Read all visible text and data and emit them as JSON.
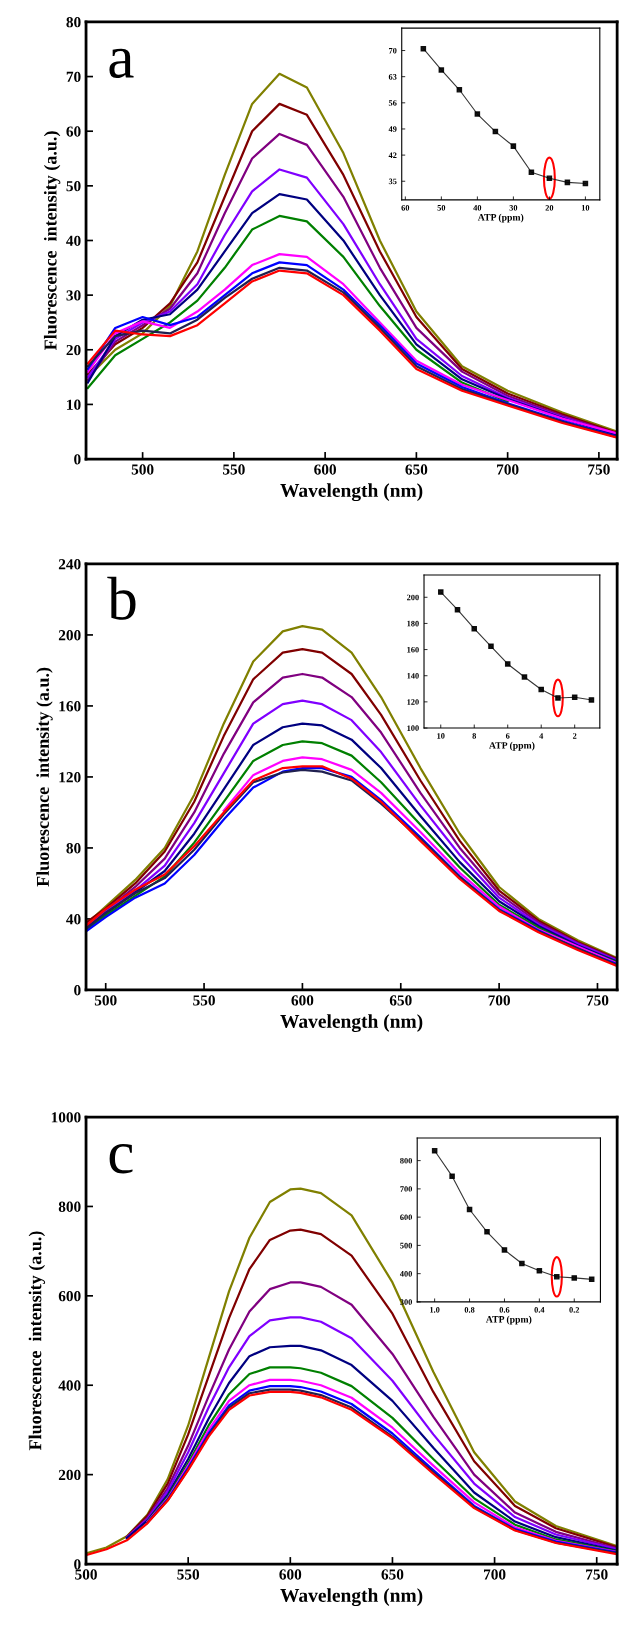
{
  "chart_data": [
    {
      "type": "line",
      "title": "a",
      "xlabel": "Wavelength (nm)",
      "ylabel": "Fluorescence  intensity (a.u.)",
      "xlim": [
        469,
        760
      ],
      "xticks": [
        500,
        550,
        600,
        650,
        700,
        750
      ],
      "ylim": [
        0,
        80
      ],
      "yticks": [
        0,
        10,
        20,
        30,
        40,
        50,
        60,
        70,
        80
      ],
      "marker": "none",
      "line_style": "solid",
      "grid": false,
      "legend": false,
      "x": [
        470,
        485,
        500,
        515,
        530,
        545,
        560,
        575,
        590,
        610,
        630,
        650,
        675,
        700,
        730,
        760
      ],
      "series": [
        {
          "color": "#808000",
          "values": [
            15,
            20,
            23,
            28,
            38,
            52,
            65,
            70.5,
            68,
            56,
            40,
            27,
            17,
            12.5,
            8.5,
            5
          ]
        },
        {
          "color": "#800000",
          "values": [
            15.5,
            21,
            24,
            28.5,
            36,
            48,
            60,
            65,
            63,
            52,
            38,
            26,
            16.5,
            12,
            8.2,
            4.8
          ]
        },
        {
          "color": "#800080",
          "values": [
            14.5,
            21.5,
            24.5,
            27.5,
            34,
            45,
            55,
            59.5,
            57.5,
            48,
            35,
            24,
            16,
            11.6,
            7.9,
            4.6
          ]
        },
        {
          "color": "#8000ff",
          "values": [
            15,
            22,
            25,
            27,
            32,
            41,
            49,
            53,
            51.5,
            43,
            32,
            22,
            15.2,
            11.2,
            7.7,
            4.4
          ]
        },
        {
          "color": "#000080",
          "values": [
            14,
            22.5,
            25.5,
            26.5,
            31,
            38,
            45,
            48.5,
            47.5,
            40,
            30,
            21,
            14.6,
            11,
            7.5,
            4.3
          ]
        },
        {
          "color": "#008000",
          "values": [
            13,
            19,
            22,
            25,
            29,
            35,
            42,
            44.5,
            43.5,
            37,
            28,
            20,
            14,
            10.5,
            null,
            null
          ]
        },
        {
          "color": "#ff00ff",
          "values": [
            16,
            23,
            25.2,
            24,
            27,
            31,
            35.5,
            37.5,
            37,
            32,
            25,
            18,
            13.6,
            10.8,
            7.4,
            4.7
          ]
        },
        {
          "color": "#0000ff",
          "values": [
            16.5,
            24,
            26,
            24.5,
            26,
            30,
            34,
            36,
            35.5,
            31,
            24.5,
            17.5,
            13.2,
            10.2,
            7,
            4.1
          ]
        },
        {
          "color": "#202050",
          "values": [
            17,
            22.5,
            23.5,
            23,
            25.5,
            29.5,
            33,
            35,
            34.5,
            30.5,
            24,
            17,
            12.8,
            10,
            6.8,
            4
          ]
        },
        {
          "color": "#ff0000",
          "values": [
            17.5,
            23.5,
            22.8,
            22.5,
            24.5,
            28.5,
            32.5,
            34.5,
            34,
            30,
            23.5,
            16.5,
            12.5,
            9.8,
            6.6,
            3.9
          ]
        }
      ]
    },
    {
      "type": "line",
      "xlabel": "ATP (ppm)",
      "xlim": [
        61,
        6
      ],
      "xticks": [
        60,
        50,
        40,
        30,
        20,
        10
      ],
      "ylim": [
        30,
        76
      ],
      "yticks": [
        35,
        42,
        49,
        56,
        63,
        70
      ],
      "marker": "square",
      "line_style": "solid",
      "grid": false,
      "legend": false,
      "x": [
        55,
        50,
        45,
        40,
        35,
        30,
        25,
        20,
        15,
        10
      ],
      "series": [
        {
          "color": "#202020",
          "values": [
            70.5,
            64.8,
            59.5,
            53,
            48.3,
            44.4,
            37.4,
            35.8,
            34.7,
            34.4
          ]
        }
      ]
    },
    {
      "type": "line",
      "title": "b",
      "xlabel": "Wavelength (nm)",
      "ylabel": "Fluorescence  intensity (a.u.)",
      "xlim": [
        490,
        760
      ],
      "xticks": [
        500,
        550,
        600,
        650,
        700,
        750
      ],
      "ylim": [
        0,
        240
      ],
      "yticks": [
        0,
        40,
        80,
        120,
        160,
        200,
        240
      ],
      "marker": "none",
      "line_style": "solid",
      "grid": false,
      "legend": false,
      "x": [
        490,
        500,
        515,
        530,
        545,
        560,
        575,
        590,
        600,
        610,
        625,
        640,
        660,
        680,
        700,
        720,
        740,
        760
      ],
      "series": [
        {
          "color": "#808000",
          "values": [
            37,
            47,
            62,
            80,
            110,
            150,
            185,
            202,
            205,
            203,
            190,
            165,
            125,
            88,
            58,
            40,
            28,
            18
          ]
        },
        {
          "color": "#800000",
          "values": [
            38,
            46,
            60,
            78,
            106,
            143,
            175,
            190,
            192,
            190,
            178,
            155,
            118,
            84,
            56,
            39,
            27,
            17.5
          ]
        },
        {
          "color": "#800080",
          "values": [
            36,
            45,
            58,
            74,
            100,
            133,
            162,
            176,
            178,
            176,
            165,
            145,
            111,
            80,
            54,
            38,
            26.5,
            17
          ]
        },
        {
          "color": "#8000ff",
          "values": [
            36.5,
            44,
            56,
            70,
            94,
            122,
            150,
            161,
            163,
            161,
            152,
            134,
            104,
            76,
            52,
            37,
            26,
            16.5
          ]
        },
        {
          "color": "#000080",
          "values": [
            35,
            43,
            55,
            67,
            88,
            113,
            138,
            148,
            150,
            149,
            141,
            125,
            98,
            72,
            50,
            36,
            25,
            16
          ]
        },
        {
          "color": "#008000",
          "values": [
            34,
            42,
            53,
            64,
            83,
            106,
            129,
            138,
            140,
            139,
            132,
            117,
            93,
            69,
            48,
            35,
            24,
            15.5
          ]
        },
        {
          "color": "#ff00ff",
          "values": [
            null,
            null,
            null,
            null,
            null,
            101,
            121,
            129,
            131,
            130,
            124,
            111,
            89,
            66,
            47,
            34,
            24.5,
            15
          ]
        },
        {
          "color": "#0000ff",
          "values": [
            33,
            41,
            52,
            60,
            76,
            96,
            114,
            123,
            125,
            125,
            120,
            107,
            86,
            64,
            45.5,
            33.5,
            23,
            14.5
          ]
        },
        {
          "color": "#202050",
          "values": [
            34.5,
            43.5,
            54.5,
            63,
            79,
            99,
            117,
            122.5,
            124,
            123,
            118,
            105,
            85,
            63.5,
            45,
            33,
            23.5,
            14
          ]
        },
        {
          "color": "#ff0000",
          "values": [
            36.2,
            45.5,
            56.5,
            65,
            81,
            100,
            118,
            125,
            126,
            126,
            119,
            106,
            84,
            62.5,
            44.5,
            32.5,
            22.5,
            13.5
          ]
        }
      ]
    },
    {
      "type": "line",
      "xlabel": "ATP (ppm)",
      "xlim": [
        11,
        0.5
      ],
      "xticks": [
        10,
        8,
        6,
        4,
        2
      ],
      "ylim": [
        100,
        217
      ],
      "yticks": [
        100,
        120,
        140,
        160,
        180,
        200
      ],
      "marker": "square",
      "line_style": "solid",
      "grid": false,
      "legend": false,
      "x": [
        10,
        9,
        8,
        7,
        6,
        5,
        4,
        3,
        2,
        1
      ],
      "series": [
        {
          "color": "#202020",
          "values": [
            204,
            190.5,
            176,
            162.5,
            149,
            139,
            129.5,
            123,
            123.5,
            121.5
          ]
        }
      ]
    },
    {
      "type": "line",
      "title": "c",
      "xlabel": "Wavelength (nm)",
      "ylabel": "Fluorescence  intensity (a.u.)",
      "xlim": [
        500,
        760
      ],
      "xticks": [
        500,
        550,
        600,
        650,
        700,
        750
      ],
      "ylim": [
        0,
        1000
      ],
      "yticks": [
        0,
        200,
        400,
        600,
        800,
        1000
      ],
      "marker": "none",
      "line_style": "solid",
      "grid": false,
      "legend": false,
      "x": [
        500,
        510,
        520,
        530,
        540,
        550,
        560,
        570,
        580,
        590,
        600,
        605,
        615,
        630,
        650,
        670,
        690,
        710,
        730,
        760
      ],
      "series": [
        {
          "color": "#808000",
          "values": [
            24,
            37,
            62,
            110,
            190,
            310,
            460,
            610,
            730,
            810,
            838,
            840,
            830,
            780,
            630,
            430,
            250,
            140,
            85,
            40
          ]
        },
        {
          "color": "#800000",
          "values": [
            null,
            null,
            61,
            108,
            180,
            290,
            420,
            550,
            660,
            725,
            746,
            748,
            738,
            690,
            560,
            385,
            230,
            130,
            80,
            38
          ]
        },
        {
          "color": "#800080",
          "values": [
            null,
            null,
            60,
            103,
            170,
            265,
            375,
            480,
            565,
            615,
            630,
            630,
            620,
            580,
            470,
            330,
            200,
            115,
            72,
            35
          ]
        },
        {
          "color": "#8000ff",
          "values": [
            null,
            null,
            59,
            100,
            163,
            250,
            350,
            440,
            510,
            545,
            552,
            552,
            542,
            505,
            410,
            290,
            180,
            105,
            66,
            33
          ]
        },
        {
          "color": "#000080",
          "values": [
            null,
            null,
            58,
            97,
            155,
            235,
            325,
            405,
            465,
            485,
            488,
            488,
            478,
            445,
            365,
            260,
            160,
            95,
            60,
            30
          ]
        },
        {
          "color": "#008000",
          "values": [
            null,
            null,
            null,
            95,
            150,
            225,
            310,
            380,
            425,
            440,
            440,
            438,
            428,
            398,
            327,
            235,
            147,
            88,
            55,
            28
          ]
        },
        {
          "color": "#ff00ff",
          "values": [
            null,
            null,
            null,
            94,
            147,
            220,
            300,
            365,
            400,
            412,
            412,
            410,
            400,
            372,
            305,
            220,
            138,
            82,
            52,
            27
          ]
        },
        {
          "color": "#0000ff",
          "values": [
            null,
            null,
            null,
            93,
            145,
            215,
            292,
            355,
            388,
            398,
            398,
            396,
            386,
            358,
            292,
            210,
            130,
            78,
            50,
            26
          ]
        },
        {
          "color": "#202050",
          "values": [
            null,
            null,
            null,
            92,
            143,
            212,
            288,
            350,
            382,
            390,
            390,
            388,
            378,
            350,
            285,
            205,
            127,
            76,
            48,
            24
          ]
        },
        {
          "color": "#ff0000",
          "values": [
            20,
            33,
            53,
            91,
            142,
            210,
            285,
            345,
            377,
            385,
            385,
            383,
            373,
            345,
            282,
            202,
            125,
            75,
            47,
            22
          ]
        }
      ]
    },
    {
      "type": "line",
      "xlabel": "ATP (ppm)",
      "xlim": [
        1.1,
        0.05
      ],
      "xticks": [
        {
          "value": 1.0,
          "label": "1.0"
        },
        0.8,
        0.6,
        0.4,
        0.2
      ],
      "ylim": [
        300,
        880
      ],
      "yticks": [
        300,
        400,
        500,
        600,
        700,
        800
      ],
      "marker": "square",
      "line_style": "solid",
      "grid": false,
      "legend": false,
      "x": [
        1.0,
        0.9,
        0.8,
        0.7,
        0.6,
        0.5,
        0.4,
        0.3,
        0.2,
        0.1
      ],
      "series": [
        {
          "color": "#202020",
          "values": [
            835,
            745,
            627,
            548,
            484,
            436,
            410,
            389,
            385,
            380
          ]
        }
      ]
    }
  ]
}
